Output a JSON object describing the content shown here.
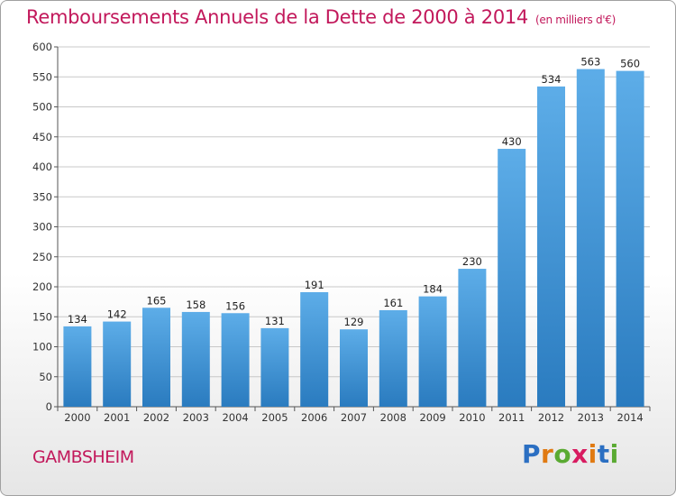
{
  "title": "Remboursements Annuels de la Dette de 2000 à 2014",
  "unit": "(en milliers d'€)",
  "commune": "GAMBSHEIM",
  "logo": {
    "letters": [
      "P",
      "r",
      "o",
      "x",
      "i",
      "t",
      "i"
    ],
    "colors": [
      "#2b6fc2",
      "#e07a12",
      "#5aaa32",
      "#d81b60",
      "#e07a12",
      "#2b6fc2",
      "#5aaa32"
    ]
  },
  "colors": {
    "bar_light": "#5dade8",
    "bar_dark": "#2a7bbf",
    "title": "#c2185b",
    "grid": "#c8c8c8",
    "axis": "#555555"
  },
  "chart_data": {
    "type": "bar",
    "title": "Remboursements Annuels de la Dette de 2000 à 2014",
    "subtitle": "(en milliers d'€)",
    "xlabel": "",
    "ylabel": "",
    "categories": [
      "2000",
      "2001",
      "2002",
      "2003",
      "2004",
      "2005",
      "2006",
      "2007",
      "2008",
      "2009",
      "2010",
      "2011",
      "2012",
      "2013",
      "2014"
    ],
    "values": [
      134,
      142,
      165,
      158,
      156,
      131,
      191,
      129,
      161,
      184,
      230,
      430,
      534,
      563,
      560
    ],
    "ylim": [
      0,
      600
    ],
    "yticks": [
      0,
      50,
      100,
      150,
      200,
      250,
      300,
      350,
      400,
      450,
      500,
      550,
      600
    ],
    "grid": true,
    "legend": "none"
  }
}
